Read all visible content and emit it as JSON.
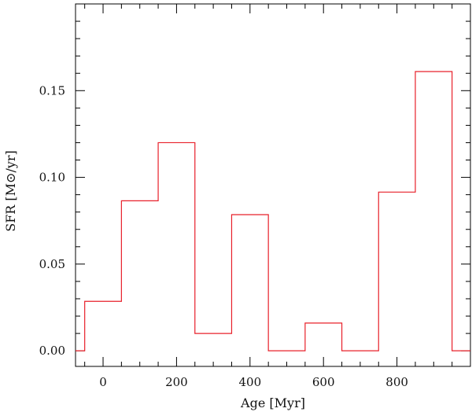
{
  "chart_data": {
    "type": "line",
    "style": "step",
    "xlabel": "Age [Myr]",
    "ylabel": "SFR [M⊙/yr]",
    "xlim": [
      -75,
      1000
    ],
    "ylim": [
      -0.009,
      0.2
    ],
    "x_ticks": [
      0,
      200,
      400,
      600,
      800
    ],
    "x_tick_labels": [
      "0",
      "200",
      "400",
      "600",
      "800"
    ],
    "y_ticks": [
      0.0,
      0.05,
      0.1,
      0.15
    ],
    "y_tick_labels": [
      "0.00",
      "0.05",
      "0.10",
      "0.15"
    ],
    "grid": false,
    "series": [
      {
        "color": "#e8202a",
        "steps": [
          {
            "x0": -50,
            "x1": 50,
            "y": 0.0285
          },
          {
            "x0": 50,
            "x1": 150,
            "y": 0.0865
          },
          {
            "x0": 150,
            "x1": 250,
            "y": 0.12
          },
          {
            "x0": 250,
            "x1": 350,
            "y": 0.01
          },
          {
            "x0": 350,
            "x1": 450,
            "y": 0.0785
          },
          {
            "x0": 450,
            "x1": 550,
            "y": 0.0
          },
          {
            "x0": 550,
            "x1": 650,
            "y": 0.016
          },
          {
            "x0": 650,
            "x1": 750,
            "y": 0.0
          },
          {
            "x0": 750,
            "x1": 850,
            "y": 0.0915
          },
          {
            "x0": 850,
            "x1": 950,
            "y": 0.161
          },
          {
            "x0": 950,
            "x1": 1000,
            "y": 0.0
          }
        ],
        "start_baseline": [
          -75,
          -50
        ]
      }
    ]
  }
}
